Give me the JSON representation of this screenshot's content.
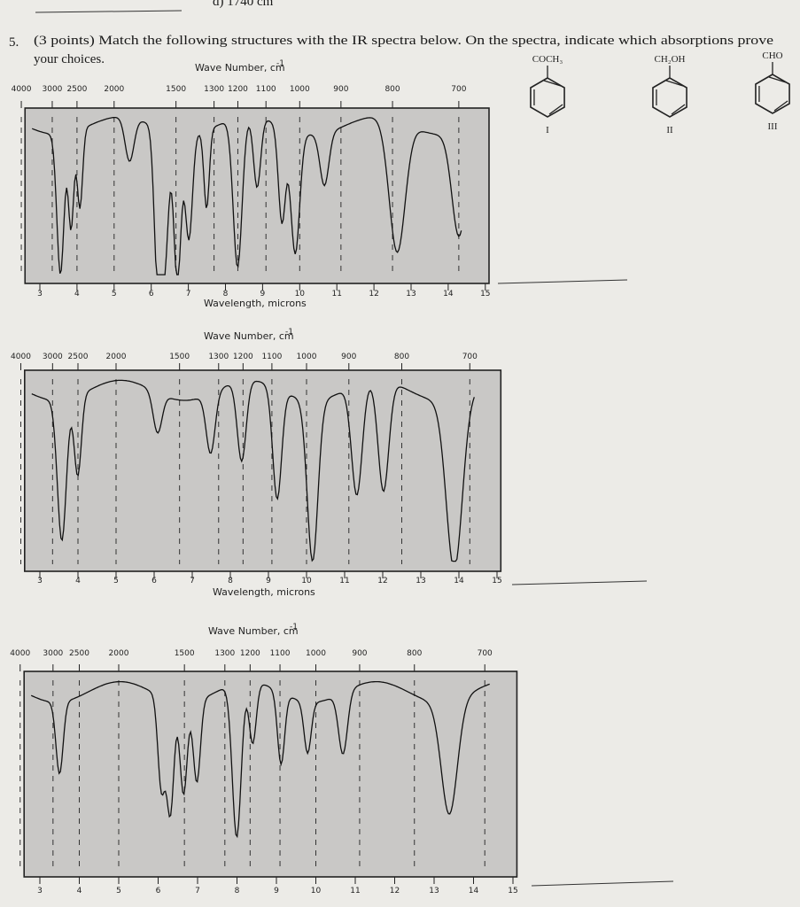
{
  "header": {
    "fragment": "d) 1740 cm"
  },
  "question": {
    "number": "5.",
    "line1": "(3 points) Match the following structures with the IR spectra below.  On the spectra, indicate which absorptions prove",
    "line2": "your choices."
  },
  "structures": [
    {
      "substituent": "COCH₃",
      "label": "I"
    },
    {
      "substituent": "CH₂OH",
      "label": "II"
    },
    {
      "substituent": "CHO",
      "label": "III"
    }
  ],
  "spectra": [
    {
      "wavenumber_title": "Wave Number, cm",
      "wavenumber_unit_exponent": "-1",
      "wavenumber_ticks": [
        4000,
        3000,
        2500,
        2000,
        1500,
        1300,
        1200,
        1100,
        1000,
        900,
        800,
        700
      ],
      "wavelength_ticks": [
        3,
        4,
        5,
        6,
        7,
        8,
        9,
        10,
        11,
        12,
        13,
        14,
        15
      ],
      "wavelength_title": "Wavelength, microns"
    },
    {
      "wavenumber_title": "Wave Number, cm",
      "wavenumber_unit_exponent": "-1",
      "wavenumber_ticks": [
        4000,
        3000,
        2500,
        2000,
        1500,
        1300,
        1200,
        1100,
        1000,
        900,
        800,
        700
      ],
      "wavelength_ticks": [
        3,
        4,
        5,
        6,
        7,
        8,
        9,
        10,
        11,
        12,
        13,
        14,
        15
      ],
      "wavelength_title": "Wavelength, microns"
    },
    {
      "wavenumber_title": "Wave Number, cm",
      "wavenumber_unit_exponent": "-1",
      "wavenumber_ticks": [
        4000,
        3000,
        2500,
        2000,
        1500,
        1300,
        1200,
        1100,
        1000,
        900,
        800,
        700
      ],
      "wavelength_ticks": [
        3,
        4,
        5,
        6,
        7,
        8,
        9,
        10,
        11,
        12,
        13,
        14,
        15
      ]
    }
  ]
}
